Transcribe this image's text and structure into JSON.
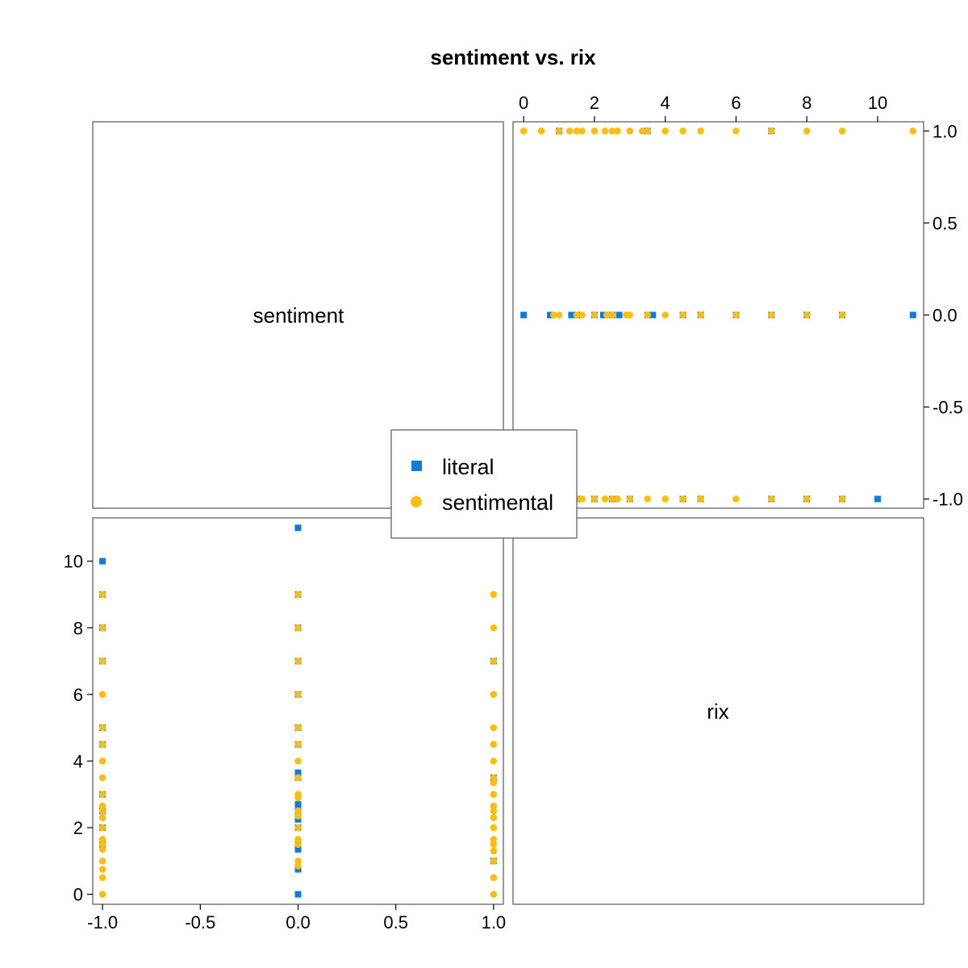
{
  "chart_data": {
    "type": "scatter",
    "chart_kind": "scatterplot matrix",
    "title": "sentiment vs. rix",
    "variables": [
      "sentiment",
      "rix"
    ],
    "axes": {
      "sentiment": {
        "range": [
          -1.05,
          1.05
        ],
        "ticks": [
          -1.0,
          -0.5,
          0.0,
          0.5,
          1.0
        ],
        "tick_labels": [
          "-1.0",
          "-0.5",
          "0.0",
          "0.5",
          "1.0"
        ]
      },
      "rix": {
        "range": [
          -0.3,
          11.3
        ],
        "ticks": [
          0,
          2,
          4,
          6,
          8,
          10
        ],
        "tick_labels": [
          "0",
          "2",
          "4",
          "6",
          "8",
          "10"
        ]
      }
    },
    "grid": false,
    "legend": {
      "placement": "center",
      "entries": [
        "literal",
        "sentimental"
      ]
    },
    "series": [
      {
        "name": "literal",
        "color": "#0f7bd6",
        "marker": "square",
        "points": [
          [
            0,
            0
          ],
          [
            0,
            0.75
          ],
          [
            0,
            1.35
          ],
          [
            0,
            1.5
          ],
          [
            0,
            2
          ],
          [
            0,
            2.25
          ],
          [
            0,
            2.5
          ],
          [
            0,
            2.7
          ],
          [
            0,
            3.5
          ],
          [
            0,
            3.65
          ],
          [
            0,
            4.5
          ],
          [
            0,
            5
          ],
          [
            0,
            6
          ],
          [
            0,
            7
          ],
          [
            0,
            8
          ],
          [
            0,
            9
          ],
          [
            0,
            11
          ],
          [
            -1,
            1.5
          ],
          [
            -1,
            2
          ],
          [
            -1,
            2.5
          ],
          [
            -1,
            3
          ],
          [
            -1,
            4.5
          ],
          [
            -1,
            5
          ],
          [
            -1,
            7
          ],
          [
            -1,
            8
          ],
          [
            -1,
            9
          ],
          [
            -1,
            10
          ],
          [
            1,
            1
          ],
          [
            1,
            3.5
          ],
          [
            1,
            7
          ]
        ]
      },
      {
        "name": "sentimental",
        "color": "#f9bd14",
        "marker": "circle",
        "points": [
          [
            1,
            0
          ],
          [
            1,
            0.5
          ],
          [
            1,
            1
          ],
          [
            1,
            1.3
          ],
          [
            1,
            1.5
          ],
          [
            1,
            1.65
          ],
          [
            1,
            2
          ],
          [
            1,
            2.3
          ],
          [
            1,
            2.5
          ],
          [
            1,
            2.65
          ],
          [
            1,
            3
          ],
          [
            1,
            3.35
          ],
          [
            1,
            3.5
          ],
          [
            1,
            4
          ],
          [
            1,
            4.5
          ],
          [
            1,
            5
          ],
          [
            1,
            6
          ],
          [
            1,
            7
          ],
          [
            1,
            8
          ],
          [
            1,
            9
          ],
          [
            1,
            11
          ],
          [
            0,
            0.85
          ],
          [
            0,
            1
          ],
          [
            0,
            1.5
          ],
          [
            0,
            1.65
          ],
          [
            0,
            2
          ],
          [
            0,
            2.35
          ],
          [
            0,
            2.5
          ],
          [
            0,
            2.9
          ],
          [
            0,
            3
          ],
          [
            0,
            3.5
          ],
          [
            0,
            4
          ],
          [
            0,
            4.5
          ],
          [
            0,
            5
          ],
          [
            0,
            6
          ],
          [
            0,
            7
          ],
          [
            0,
            8
          ],
          [
            0,
            9
          ],
          [
            -1,
            0
          ],
          [
            -1,
            0.5
          ],
          [
            -1,
            0.75
          ],
          [
            -1,
            1
          ],
          [
            -1,
            1.35
          ],
          [
            -1,
            1.5
          ],
          [
            -1,
            1.65
          ],
          [
            -1,
            2
          ],
          [
            -1,
            2.3
          ],
          [
            -1,
            2.5
          ],
          [
            -1,
            2.65
          ],
          [
            -1,
            3
          ],
          [
            -1,
            3.5
          ],
          [
            -1,
            4
          ],
          [
            -1,
            4.5
          ],
          [
            -1,
            5
          ],
          [
            -1,
            6
          ],
          [
            -1,
            7
          ],
          [
            -1,
            8
          ],
          [
            -1,
            9
          ]
        ]
      }
    ]
  }
}
